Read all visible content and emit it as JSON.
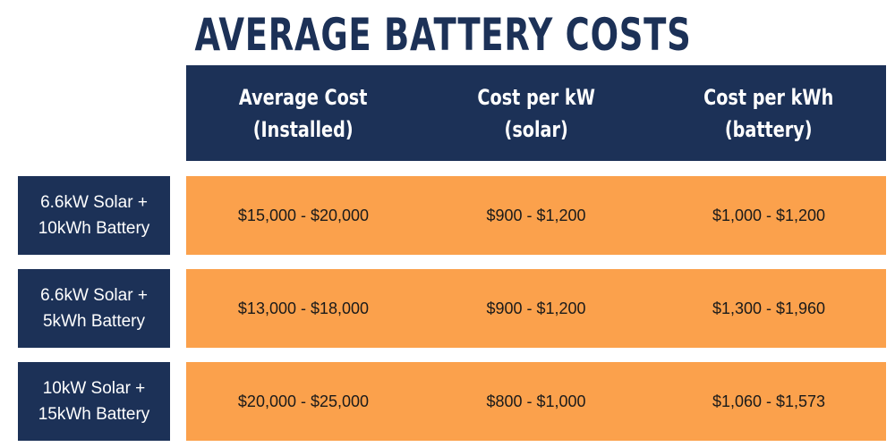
{
  "title": "AVERAGE BATTERY COSTS",
  "colors": {
    "navy": "#1c3157",
    "orange": "#fba14c",
    "white": "#ffffff"
  },
  "columns": [
    {
      "line1": "Average Cost",
      "line2": "(Installed)"
    },
    {
      "line1": "Cost per kW",
      "line2": "(solar)"
    },
    {
      "line1": "Cost per kWh",
      "line2": "(battery)"
    }
  ],
  "rows": [
    {
      "label_line1": "6.6kW Solar +",
      "label_line2": "10kWh Battery",
      "cells": [
        "$15,000 - $20,000",
        "$900 - $1,200",
        "$1,000 - $1,200"
      ]
    },
    {
      "label_line1": "6.6kW Solar +",
      "label_line2": "5kWh Battery",
      "cells": [
        "$13,000 - $18,000",
        "$900 - $1,200",
        "$1,300 - $1,960"
      ]
    },
    {
      "label_line1": "10kW Solar +",
      "label_line2": "15kWh Battery",
      "cells": [
        "$20,000 - $25,000",
        "$800 - $1,000",
        "$1,060 - $1,573"
      ]
    }
  ]
}
